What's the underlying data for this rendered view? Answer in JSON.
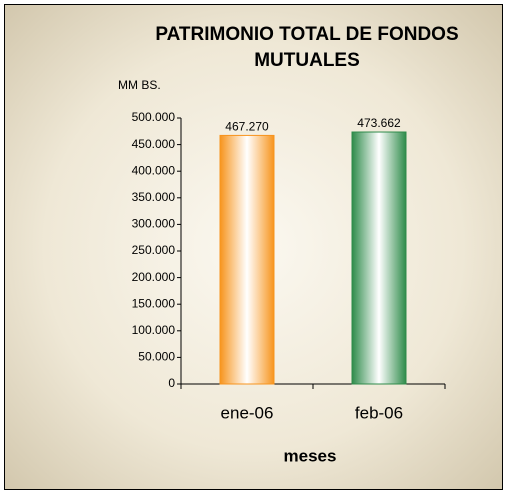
{
  "chart_data": {
    "type": "bar",
    "title": "PATRIMONIO TOTAL DE FONDOS MUTUALES",
    "y_label": "MM  BS.",
    "x_label": "meses",
    "categories": [
      "ene-06",
      "feb-06"
    ],
    "series": [
      {
        "name": "ene-06",
        "color": "#f7941d",
        "values": [
          467270,
          null
        ],
        "value_labels": [
          "467.270",
          null
        ]
      },
      {
        "name": "feb-06",
        "color": "#2e8b4a",
        "values": [
          null,
          473662
        ],
        "value_labels": [
          null,
          "473.662"
        ]
      }
    ],
    "ylim": [
      0,
      500000
    ],
    "yticks": [
      {
        "value": 0,
        "label": "0"
      },
      {
        "value": 50000,
        "label": "50.000"
      },
      {
        "value": 100000,
        "label": "100.000"
      },
      {
        "value": 150000,
        "label": "150.000"
      },
      {
        "value": 200000,
        "label": "200.000"
      },
      {
        "value": 250000,
        "label": "250.000"
      },
      {
        "value": 300000,
        "label": "300.000"
      },
      {
        "value": 350000,
        "label": "350.000"
      },
      {
        "value": 400000,
        "label": "400.000"
      },
      {
        "value": 450000,
        "label": "450.000"
      },
      {
        "value": 500000,
        "label": "500.000"
      }
    ],
    "grid": false
  }
}
